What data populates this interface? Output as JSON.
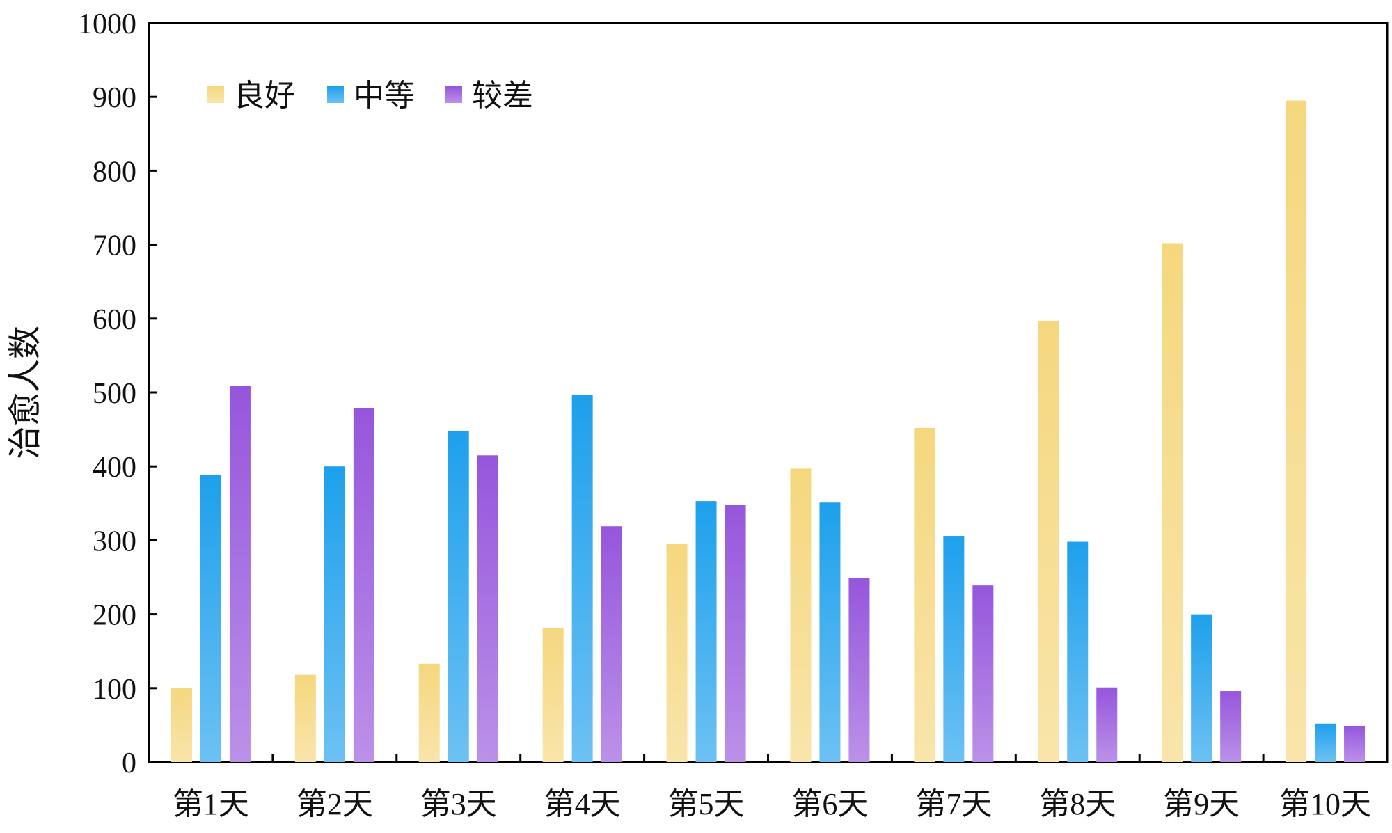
{
  "chart_data": {
    "type": "bar",
    "ylabel": "治愈人数",
    "xlabel": "",
    "ylim": [
      0,
      1000
    ],
    "yticks": [
      0,
      100,
      200,
      300,
      400,
      500,
      600,
      700,
      800,
      900,
      1000
    ],
    "categories": [
      "第1天",
      "第2天",
      "第3天",
      "第4天",
      "第5天",
      "第6天",
      "第7天",
      "第8天",
      "第9天",
      "第10天"
    ],
    "series": [
      {
        "name": "良好",
        "color": "#F5D77E",
        "values": [
          100,
          118,
          133,
          181,
          295,
          397,
          452,
          597,
          702,
          895
        ]
      },
      {
        "name": "中等",
        "color": "#1EA0EC",
        "values": [
          388,
          400,
          448,
          497,
          353,
          351,
          306,
          298,
          199,
          52
        ]
      },
      {
        "name": "较差",
        "color": "#9656DC",
        "values": [
          509,
          479,
          415,
          319,
          348,
          249,
          239,
          101,
          96,
          49
        ]
      }
    ],
    "legend": "top-left",
    "grid": false
  }
}
